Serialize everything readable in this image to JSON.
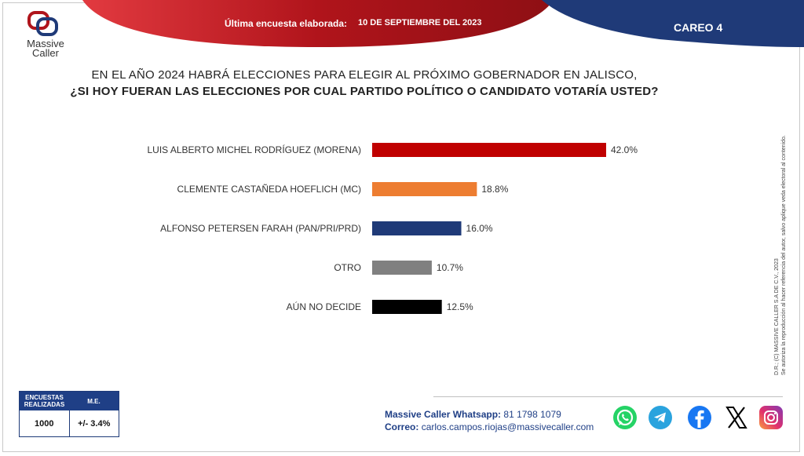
{
  "header": {
    "brand_line1": "Massive",
    "brand_line2": "Caller",
    "survey_label": "Última encuesta elaborada:",
    "survey_date": "10 DE SEPTIEMBRE DEL 2023",
    "careo": "CAREO 4",
    "colors": {
      "red": "#b0141b",
      "navy": "#1f3a78"
    }
  },
  "question": {
    "line1": "EN EL AÑO 2024 HABRÁ ELECCIONES PARA ELEGIR AL PRÓXIMO GOBERNADOR EN JALISCO,",
    "line2": "¿SI HOY FUERAN LAS ELECCIONES POR CUAL PARTIDO POLÍTICO O CANDIDATO VOTARÍA USTED?"
  },
  "chart_data": {
    "type": "bar",
    "orientation": "horizontal",
    "categories": [
      "LUIS ALBERTO MICHEL RODRÍGUEZ (MORENA)",
      "CLEMENTE CASTAÑEDA HOEFLICH (MC)",
      "ALFONSO PETERSEN FARAH (PAN/PRI/PRD)",
      "OTRO",
      "AÚN NO DECIDE"
    ],
    "values": [
      42.0,
      18.8,
      16.0,
      10.7,
      12.5
    ],
    "value_labels": [
      "42.0%",
      "18.8%",
      "16.0%",
      "10.7%",
      "12.5%"
    ],
    "colors": [
      "#c00000",
      "#ed7d31",
      "#1f3a78",
      "#808080",
      "#000000"
    ],
    "xlim": [
      0,
      50
    ],
    "grid": false,
    "legend": "none"
  },
  "sidebar_note": {
    "line1": "D.R.; (C) MASSIVE CALLER S.A DE C.V., 2023",
    "line2": "Se autoriza la reproducción al hacer referencia del autor, salvo aplique veda electoral al contenido."
  },
  "sample": {
    "col1_header": "ENCUESTAS REALIZADAS",
    "col2_header": "M.E.",
    "col1_value": "1000",
    "col2_value": "+/- 3.4%"
  },
  "contact": {
    "whatsapp_label": "Massive Caller Whatsapp:",
    "whatsapp_value": "81 1798 1079",
    "email_label": "Correo:",
    "email_value": "carlos.campos.riojas@massivecaller.com"
  },
  "social_icons": [
    "whatsapp-icon",
    "telegram-icon",
    "facebook-icon",
    "x-icon",
    "instagram-icon"
  ]
}
